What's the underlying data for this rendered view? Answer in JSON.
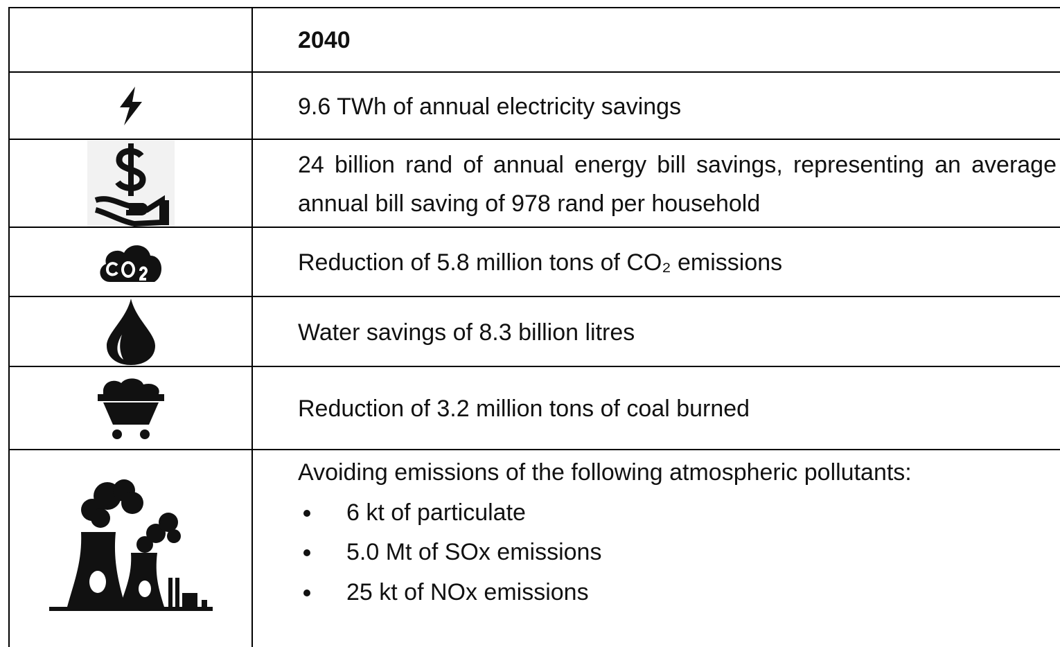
{
  "table": {
    "header": {
      "year": "2040"
    },
    "rows": [
      {
        "text": "9.6 TWh of annual electricity savings"
      },
      {
        "text": "24 billion rand of annual energy bill savings, representing an average annual bill saving of 978 rand per household"
      },
      {
        "text": "Reduction of 5.8 million tons of CO₂ emissions"
      },
      {
        "text": "Water savings of 8.3 billion litres"
      },
      {
        "text": "Reduction of 3.2 million tons of coal burned"
      },
      {
        "text": "Avoiding emissions of the following atmospheric pollutants:",
        "bullets": [
          "6 kt of particulate",
          "5.0 Mt of SOx emissions",
          "25 kt of NOx emissions"
        ]
      }
    ]
  }
}
